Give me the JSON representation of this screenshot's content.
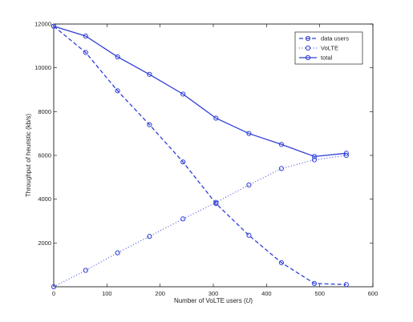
{
  "chart_data": {
    "type": "line",
    "xlabel_prefix": "Number of VoLTE users (",
    "xlabel_var": "U",
    "xlabel_suffix": ")",
    "ylabel": "Throughput of heuristic (kb/s)",
    "xlim": [
      0,
      600
    ],
    "ylim": [
      0,
      12000
    ],
    "xticks": [
      0,
      100,
      200,
      300,
      400,
      500,
      600
    ],
    "yticks": [
      2000,
      4000,
      6000,
      8000,
      10000,
      12000
    ],
    "grid": false,
    "legend": "top-right",
    "series_color": "#2f3fd6",
    "series": [
      {
        "name": "data users",
        "style": "dashed",
        "x": [
          0,
          60,
          120,
          180,
          243,
          305,
          367,
          428,
          490,
          550
        ],
        "y": [
          11900,
          10700,
          8950,
          7400,
          5700,
          3800,
          2350,
          1100,
          150,
          100
        ]
      },
      {
        "name": "VoLTE",
        "style": "dotted",
        "x": [
          0,
          60,
          120,
          180,
          243,
          305,
          367,
          428,
          490,
          550
        ],
        "y": [
          0,
          750,
          1550,
          2300,
          3100,
          3850,
          4650,
          5400,
          5800,
          6000
        ]
      },
      {
        "name": "total",
        "style": "solid",
        "x": [
          0,
          60,
          120,
          180,
          243,
          305,
          367,
          428,
          490,
          550
        ],
        "y": [
          11900,
          11450,
          10500,
          9700,
          8800,
          7700,
          7000,
          6500,
          5950,
          6100
        ]
      }
    ]
  }
}
